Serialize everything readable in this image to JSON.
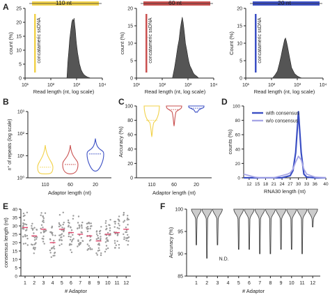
{
  "colors": {
    "yellow": "#f2d24a",
    "red": "#c9504f",
    "blue": "#3b4fc4",
    "lightblue": "#a7a6e6",
    "hist_fill": "#555555",
    "gray_point": "#9a9a9a",
    "accent_line": "#e34a6f",
    "violin_fill": "#cccccc"
  },
  "chart_data": [
    {
      "id": "A1",
      "panel": "A",
      "type": "area",
      "title": "110 nt",
      "xlabel": "Read length (nt, log scale)",
      "ylabel": "count (%)",
      "xscale": "log",
      "xlim": [
        10,
        10000
      ],
      "ylim": [
        0,
        25
      ],
      "xticks": [
        "10¹",
        "10²",
        "10³",
        "10⁴"
      ],
      "yticks": [
        "0",
        "5",
        "10",
        "15",
        "20",
        "25"
      ],
      "annotation": "concatameric ssDNA",
      "annotation_color": "yellow",
      "x": [
        420,
        460,
        500,
        540,
        600,
        650,
        700,
        750,
        800,
        850,
        900,
        950,
        1000,
        1100,
        1200,
        1300,
        1400,
        1500,
        1700,
        1900,
        2200,
        2600,
        3000,
        3500
      ],
      "y": [
        0,
        6,
        10,
        14,
        17.5,
        20,
        21,
        20.5,
        21.5,
        19,
        17,
        14,
        12,
        9,
        7,
        5,
        4,
        3,
        2,
        1.3,
        0.8,
        0.4,
        0.2,
        0
      ]
    },
    {
      "id": "A2",
      "panel": "A",
      "type": "area",
      "title": "60 nt",
      "xlabel": "Read length (nt, log scale)",
      "ylabel": "count (%)",
      "xscale": "log",
      "xlim": [
        10,
        10000
      ],
      "ylim": [
        0,
        20
      ],
      "xticks": [
        "10¹",
        "10²",
        "10³",
        "10⁴"
      ],
      "yticks": [
        "0",
        "5",
        "10",
        "15",
        "20"
      ],
      "annotation": "concatameric ssDNA",
      "annotation_color": "red",
      "x": [
        250,
        300,
        350,
        400,
        450,
        500,
        550,
        600,
        650,
        700,
        750,
        800,
        900,
        1000,
        1100,
        1200,
        1400,
        1600,
        1800,
        2200,
        2600
      ],
      "y": [
        0,
        3,
        6,
        9,
        11,
        14,
        16,
        17.5,
        16,
        14,
        12,
        10,
        8,
        6,
        4.5,
        3.5,
        2.5,
        1.5,
        1,
        0.5,
        0
      ]
    },
    {
      "id": "A3",
      "panel": "A",
      "type": "area",
      "title": "20 nt",
      "xlabel": "Read length (nt, log scale)",
      "ylabel": "Count (%)",
      "xscale": "log",
      "xlim": [
        10,
        10000
      ],
      "ylim": [
        0,
        20
      ],
      "xticks": [
        "10¹",
        "10²",
        "10³",
        "10⁴"
      ],
      "yticks": [
        "0",
        "5",
        "10",
        "15",
        "20"
      ],
      "annotation": "concatameric ssDNA",
      "annotation_color": "blue",
      "x": [
        110,
        140,
        170,
        200,
        230,
        260,
        290,
        320,
        350,
        380,
        420,
        460,
        500,
        550,
        600,
        700,
        800,
        1000,
        1200,
        1500
      ],
      "y": [
        0,
        1,
        2,
        4,
        6,
        8,
        9.5,
        11,
        11.5,
        10.5,
        9,
        7.5,
        6,
        4.5,
        3,
        2,
        1.2,
        0.6,
        0.3,
        0
      ]
    },
    {
      "id": "B",
      "panel": "B",
      "type": "violin",
      "xlabel": "Adaptor length (nt)",
      "ylabel": "n° of repeats (log scale)",
      "yscale": "log",
      "ylim": [
        1,
        1000
      ],
      "yticks": [
        "10⁰",
        "10¹",
        "10²",
        "10³"
      ],
      "categories": [
        "110",
        "60",
        "20"
      ],
      "series_colors": [
        "yellow",
        "red",
        "blue"
      ],
      "medians": [
        3,
        4,
        12
      ],
      "ranges": [
        [
          1.5,
          30
        ],
        [
          1.5,
          30
        ],
        [
          2,
          60
        ]
      ]
    },
    {
      "id": "C",
      "panel": "C",
      "type": "violin",
      "xlabel": "Adaptor length (nt)",
      "ylabel": "Accuracy (%)",
      "ylim": [
        0,
        100
      ],
      "yticks": [
        "0",
        "20",
        "40",
        "60",
        "80",
        "100"
      ],
      "categories": [
        "110",
        "60",
        "20"
      ],
      "series_colors": [
        "yellow",
        "red",
        "blue"
      ],
      "medians": [
        80,
        95,
        97
      ],
      "ranges": [
        [
          57,
          100
        ],
        [
          72,
          100
        ],
        [
          92,
          100
        ]
      ]
    },
    {
      "id": "D",
      "panel": "D",
      "type": "line",
      "xlabel": "RNA30 length (nt)",
      "ylabel": "counts (%)",
      "xlim": [
        10,
        40
      ],
      "ylim": [
        0,
        100
      ],
      "xticks": [
        "12",
        "15",
        "18",
        "21",
        "24",
        "27",
        "30",
        "33",
        "36",
        "40"
      ],
      "yticks": [
        "0",
        "20",
        "40",
        "60",
        "80",
        "100"
      ],
      "series": [
        {
          "name": "with consensus",
          "color": "blue",
          "x": [
            10,
            12,
            15,
            18,
            21,
            24,
            27,
            28,
            29,
            30,
            31,
            32,
            33,
            36,
            40
          ],
          "y": [
            0,
            0,
            0,
            0,
            0,
            0,
            3,
            10,
            35,
            92,
            35,
            5,
            1,
            0,
            0
          ]
        },
        {
          "name": "w/o consensus",
          "color": "lightblue",
          "x": [
            10,
            12,
            14,
            16,
            18,
            21,
            24,
            26,
            27,
            28,
            29,
            30,
            31,
            32,
            33,
            36,
            40
          ],
          "y": [
            5,
            3,
            1,
            0,
            0,
            0,
            3,
            5,
            7,
            12,
            22,
            30,
            25,
            12,
            5,
            1,
            0
          ]
        }
      ]
    },
    {
      "id": "E",
      "panel": "E",
      "type": "scatter",
      "xlabel": "# Adaptor",
      "ylabel": "consensus length (nt)",
      "ylim": [
        0,
        40
      ],
      "yticks": [
        "0",
        "5",
        "10",
        "15",
        "20",
        "25",
        "30",
        "35",
        "40"
      ],
      "categories": [
        "1",
        "2",
        "3",
        "4",
        "5",
        "6",
        "7",
        "8",
        "9",
        "10",
        "11",
        "12"
      ],
      "means": [
        29,
        24,
        28,
        20,
        28,
        26,
        25,
        24,
        21,
        25,
        26,
        28
      ]
    },
    {
      "id": "F",
      "panel": "F",
      "type": "violin",
      "xlabel": "# Adaptor",
      "ylabel": "Accuracy (%)",
      "ylim": [
        85,
        100
      ],
      "yticks": [
        "85",
        "90",
        "95",
        "100"
      ],
      "categories": [
        "1",
        "2",
        "3",
        "4",
        "5",
        "6",
        "7",
        "8",
        "9",
        "10",
        "11",
        "12"
      ],
      "annotation": "N.D.",
      "ranges": [
        [
          92,
          100
        ],
        [
          89,
          100
        ],
        [
          92,
          100
        ],
        null,
        [
          91,
          100
        ],
        [
          91,
          100
        ],
        [
          90,
          100
        ],
        [
          90,
          100
        ],
        [
          91,
          100
        ],
        [
          91,
          100
        ],
        [
          90,
          100
        ],
        [
          96,
          100
        ]
      ]
    }
  ]
}
